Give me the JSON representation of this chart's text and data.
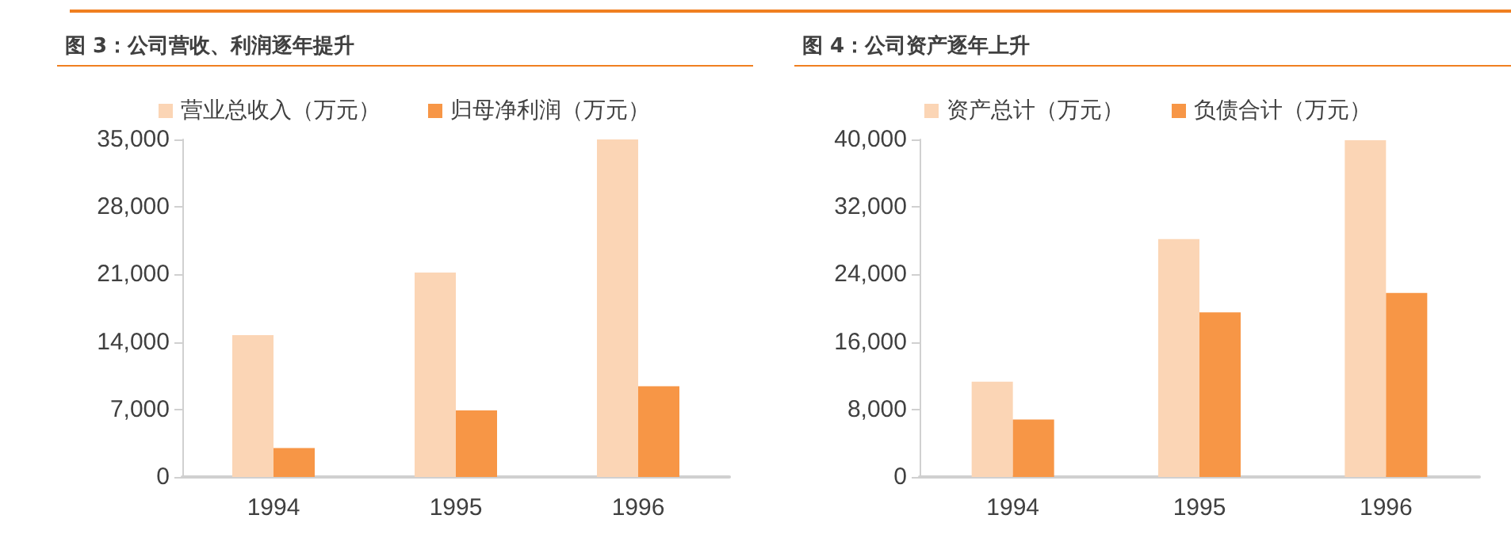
{
  "chart_data": [
    {
      "type": "bar",
      "title": "图 3：公司营收、利润逐年提升",
      "categories": [
        "1994",
        "1995",
        "1996"
      ],
      "series": [
        {
          "name": "营业总收入（万元）",
          "color": "#fbd5b5",
          "values": [
            14700,
            21200,
            35000
          ]
        },
        {
          "name": "归母净利润（万元）",
          "color": "#f79646",
          "values": [
            3000,
            6900,
            9400
          ]
        }
      ],
      "ylim": [
        0,
        35000
      ],
      "yticks": [
        0,
        {
          "value": 7000,
          "label": "7,000"
        },
        {
          "value": 14000,
          "label": "14,000"
        },
        {
          "value": 21000,
          "label": "21,000"
        },
        {
          "value": 28000,
          "label": "28,000"
        },
        {
          "value": 35000,
          "label": "35,000"
        }
      ],
      "legend": "top"
    },
    {
      "type": "bar",
      "title": "图 4：公司资产逐年上升",
      "categories": [
        "1994",
        "1995",
        "1996"
      ],
      "series": [
        {
          "name": "资产总计（万元）",
          "color": "#fbd5b5",
          "values": [
            11300,
            28200,
            39900
          ]
        },
        {
          "name": "负债合计（万元）",
          "color": "#f79646",
          "values": [
            6800,
            19500,
            21800
          ]
        }
      ],
      "ylim": [
        0,
        40000
      ],
      "yticks": [
        0,
        {
          "value": 8000,
          "label": "8,000"
        },
        {
          "value": 16000,
          "label": "16,000"
        },
        {
          "value": 24000,
          "label": "24,000"
        },
        {
          "value": 32000,
          "label": "32,000"
        },
        {
          "value": 40000,
          "label": "40,000"
        }
      ],
      "legend": "top"
    }
  ]
}
